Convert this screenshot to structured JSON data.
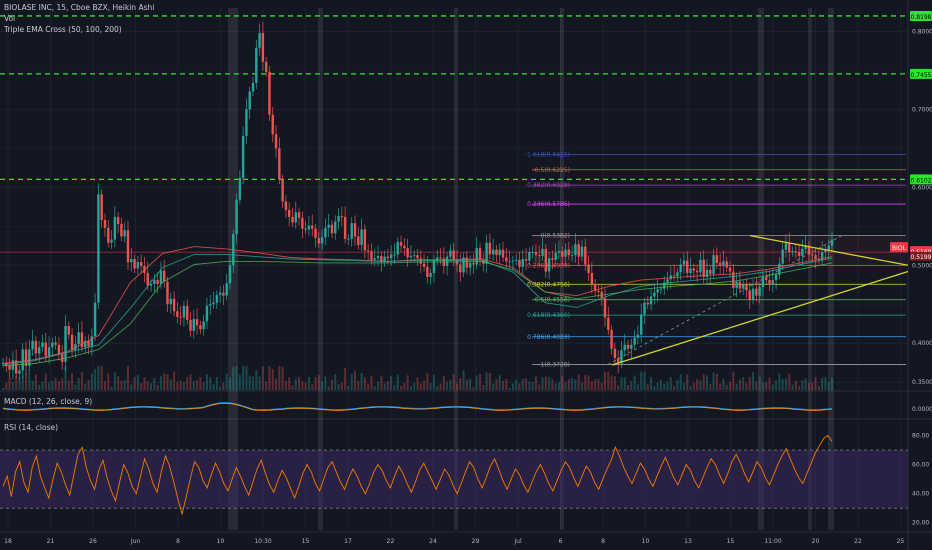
{
  "header": {
    "symbol_line": "BIOLASE INC, 15, Cboe BZX, Heikin Ashi",
    "vol_label": "Vol",
    "ema_label": "Triple EMA Cross (50, 100, 200)"
  },
  "panels": {
    "macd_label": "MACD (12, 26, close, 9)",
    "rsi_label": "RSI (14, close)"
  },
  "colors": {
    "background": "#131722",
    "grid": "#1e2230",
    "green_dash": "#27e827",
    "up_candle": "#26a69a",
    "down_candle": "#ef5350",
    "rsi_line": "#f57c00",
    "rsi_band": "#3b2a5e",
    "triangle": "#d4d42a",
    "price_tag": "#f23645"
  },
  "chart_data": {
    "type": "line",
    "title": "BIOLASE INC, 15, Cboe BZX, Heikin Ashi",
    "x_ticks": [
      "18",
      "21",
      "26",
      "Jun",
      "8",
      "10",
      "10:30",
      "15",
      "17",
      "22",
      "24",
      "29",
      "Jul",
      "6",
      "8",
      "10",
      "13",
      "15",
      "11:00",
      "20",
      "22",
      "25"
    ],
    "price_axis": {
      "ylim": [
        0.34,
        0.83
      ],
      "ticks": [
        "0.8000",
        "0.7000",
        "0.6000",
        "0.5000",
        "0.4000",
        "0.3500"
      ]
    },
    "horizontal_levels": [
      {
        "value": 0.8198,
        "label": "0.8198",
        "style": "green-dash"
      },
      {
        "value": 0.7455,
        "label": "0.7455",
        "style": "green-dash"
      },
      {
        "value": 0.6102,
        "label": "0.6102",
        "style": "green-dash"
      },
      {
        "value": 0.5168,
        "label": "0.5168",
        "style": "price"
      },
      {
        "value": 0.5199,
        "label": "0.5199",
        "style": "price-secondary"
      }
    ],
    "price_tag": "BIOL",
    "fib_levels": [
      {
        "label": "-1.618(0.6421)",
        "value": 0.6421,
        "color": "#3f51b5"
      },
      {
        "label": "-0.5(0.6225)",
        "value": 0.6225,
        "color": "#ef5350"
      },
      {
        "label": "-0.382(0.6028)",
        "value": 0.6028,
        "color": "#ab47bc"
      },
      {
        "label": "0.236(0.5785)",
        "value": 0.5785,
        "color": "#e040fb"
      },
      {
        "label": "0(0.5382)",
        "value": 0.5382,
        "color": "#9e9e9e"
      },
      {
        "label": "0.236(0.4999)",
        "value": 0.4999,
        "color": "#ef5350"
      },
      {
        "label": "0.382(0.4756)",
        "value": 0.4756,
        "color": "#cddc39"
      },
      {
        "label": "0.5(0.4558)",
        "value": 0.4558,
        "color": "#66bb6a"
      },
      {
        "label": "0.618(0.4360)",
        "value": 0.436,
        "color": "#26a69a"
      },
      {
        "label": "0.786(0.4083)",
        "value": 0.4083,
        "color": "#42a5f5"
      },
      {
        "label": "1(0.3728)",
        "value": 0.3728,
        "color": "#9e9e9e"
      }
    ],
    "price_series": [
      0.375,
      0.371,
      0.366,
      0.378,
      0.361,
      0.365,
      0.392,
      0.371,
      0.392,
      0.403,
      0.387,
      0.395,
      0.401,
      0.384,
      0.395,
      0.401,
      0.398,
      0.386,
      0.376,
      0.422,
      0.411,
      0.391,
      0.399,
      0.414,
      0.395,
      0.403,
      0.396,
      0.409,
      0.452,
      0.591,
      0.558,
      0.548,
      0.529,
      0.533,
      0.562,
      0.553,
      0.537,
      0.545,
      0.504,
      0.508,
      0.496,
      0.504,
      0.499,
      0.49,
      0.474,
      0.476,
      0.481,
      0.476,
      0.493,
      0.479,
      0.45,
      0.457,
      0.441,
      0.434,
      0.433,
      0.448,
      0.43,
      0.416,
      0.431,
      0.423,
      0.418,
      0.428,
      0.448,
      0.45,
      0.452,
      0.462,
      0.465,
      0.461,
      0.477,
      0.5,
      0.54,
      0.584,
      0.612,
      0.666,
      0.7,
      0.723,
      0.734,
      0.779,
      0.798,
      0.761,
      0.748,
      0.693,
      0.668,
      0.65,
      0.61,
      0.582,
      0.571,
      0.562,
      0.555,
      0.568,
      0.561,
      0.547,
      0.546,
      0.551,
      0.547,
      0.535,
      0.528,
      0.536,
      0.548,
      0.552,
      0.541,
      0.556,
      0.563,
      0.562,
      0.534,
      0.534,
      0.554,
      0.537,
      0.526,
      0.546,
      0.519,
      0.518,
      0.507,
      0.509,
      0.512,
      0.504,
      0.511,
      0.509,
      0.514,
      0.514,
      0.53,
      0.525,
      0.522,
      0.51,
      0.512,
      0.513,
      0.509,
      0.502,
      0.498,
      0.485,
      0.49,
      0.506,
      0.51,
      0.509,
      0.499,
      0.511,
      0.519,
      0.507,
      0.501,
      0.491,
      0.51,
      0.497,
      0.503,
      0.501,
      0.522,
      0.507,
      0.502,
      0.529,
      0.514,
      0.52,
      0.513,
      0.52,
      0.51,
      0.505,
      0.505,
      0.506,
      0.507,
      0.498,
      0.508,
      0.506,
      0.517,
      0.517,
      0.513,
      0.512,
      0.521,
      0.492,
      0.509,
      0.507,
      0.516,
      0.518,
      0.511,
      0.52,
      0.513,
      0.513,
      0.527,
      0.511,
      0.524,
      0.501,
      0.49,
      0.476,
      0.467,
      0.466,
      0.458,
      0.433,
      0.417,
      0.393,
      0.381,
      0.374,
      0.391,
      0.398,
      0.393,
      0.398,
      0.407,
      0.411,
      0.437,
      0.452,
      0.45,
      0.46,
      0.465,
      0.469,
      0.47,
      0.478,
      0.482,
      0.487,
      0.486,
      0.491,
      0.501,
      0.506,
      0.49,
      0.496,
      0.493,
      0.491,
      0.507,
      0.485,
      0.494,
      0.489,
      0.513,
      0.503,
      0.499,
      0.505,
      0.497,
      0.492,
      0.471,
      0.479,
      0.47,
      0.475,
      0.468,
      0.456,
      0.47,
      0.461,
      0.472,
      0.485,
      0.481,
      0.475,
      0.481,
      0.488,
      0.502,
      0.52,
      0.528,
      0.517,
      0.518,
      0.517,
      0.512,
      0.521,
      0.525,
      0.514,
      0.513,
      0.508,
      0.507,
      0.517,
      0.519,
      0.525,
      0.533
    ],
    "ema_series": [
      {
        "color": "#ef5350",
        "values": [
          0.374,
          0.379,
          0.389,
          0.41,
          0.478,
          0.515,
          0.524,
          0.521,
          0.516,
          0.51,
          0.508,
          0.507,
          0.505,
          0.507,
          0.507,
          0.508,
          0.497,
          0.466,
          0.461,
          0.473,
          0.481,
          0.484,
          0.487,
          0.489,
          0.495,
          0.503,
          0.511
        ]
      },
      {
        "color": "#26a69a",
        "values": [
          0.372,
          0.378,
          0.388,
          0.398,
          0.445,
          0.497,
          0.514,
          0.514,
          0.511,
          0.508,
          0.507,
          0.506,
          0.505,
          0.506,
          0.506,
          0.507,
          0.491,
          0.452,
          0.446,
          0.461,
          0.473,
          0.478,
          0.482,
          0.486,
          0.492,
          0.501,
          0.509
        ]
      },
      {
        "color": "#4caf50",
        "values": [
          0.371,
          0.374,
          0.381,
          0.392,
          0.425,
          0.478,
          0.501,
          0.505,
          0.505,
          0.504,
          0.503,
          0.503,
          0.503,
          0.504,
          0.504,
          0.505,
          0.494,
          0.466,
          0.457,
          0.463,
          0.469,
          0.473,
          0.476,
          0.48,
          0.487,
          0.495,
          0.503
        ]
      }
    ],
    "macd_axis": {
      "ticks": [
        "0.0000"
      ]
    },
    "rsi_axis": {
      "ticks": [
        "80.00",
        "60.00",
        "40.00",
        "20.00"
      ],
      "ylim": [
        15,
        90
      ],
      "upper": 70,
      "lower": 30
    },
    "rsi_series": [
      45,
      52,
      38,
      55,
      62,
      48,
      41,
      58,
      66,
      52,
      44,
      37,
      50,
      61,
      55,
      46,
      39,
      53,
      67,
      72,
      58,
      49,
      43,
      56,
      63,
      51,
      42,
      35,
      48,
      60,
      54,
      45,
      40,
      52,
      64,
      57,
      47,
      41,
      55,
      66,
      59,
      48,
      36,
      26,
      38,
      51,
      62,
      58,
      49,
      44,
      53,
      61,
      55,
      47,
      42,
      50,
      58,
      52,
      45,
      39,
      48,
      57,
      63,
      54,
      46,
      41,
      49,
      56,
      51,
      44,
      37,
      45,
      54,
      60,
      55,
      47,
      42,
      50,
      58,
      62,
      55,
      48,
      43,
      51,
      57,
      52,
      45,
      40,
      47,
      55,
      60,
      56,
      49,
      44,
      52,
      59,
      54,
      47,
      41,
      48,
      56,
      61,
      55,
      49,
      43,
      50,
      57,
      53,
      46,
      40,
      47,
      55,
      62,
      58,
      50,
      44,
      51,
      59,
      64,
      57,
      49,
      43,
      50,
      57,
      53,
      46,
      41,
      48,
      55,
      60,
      54,
      47,
      42,
      49,
      56,
      62,
      58,
      51,
      45,
      52,
      59,
      55,
      48,
      43,
      50,
      57,
      63,
      72,
      66,
      58,
      52,
      47,
      54,
      61,
      57,
      50,
      45,
      52,
      59,
      65,
      58,
      51,
      46,
      53,
      60,
      56,
      49,
      44,
      51,
      58,
      64,
      60,
      53,
      47,
      54,
      62,
      67,
      61,
      54,
      48,
      55,
      62,
      58,
      51,
      46,
      53,
      60,
      66,
      71,
      64,
      57,
      51,
      47,
      54,
      61,
      68,
      73,
      78,
      80,
      76
    ],
    "annotations": {
      "triangle": "yellow ascending/descending trendlines converging near 25",
      "last_price": "0.5168"
    }
  }
}
